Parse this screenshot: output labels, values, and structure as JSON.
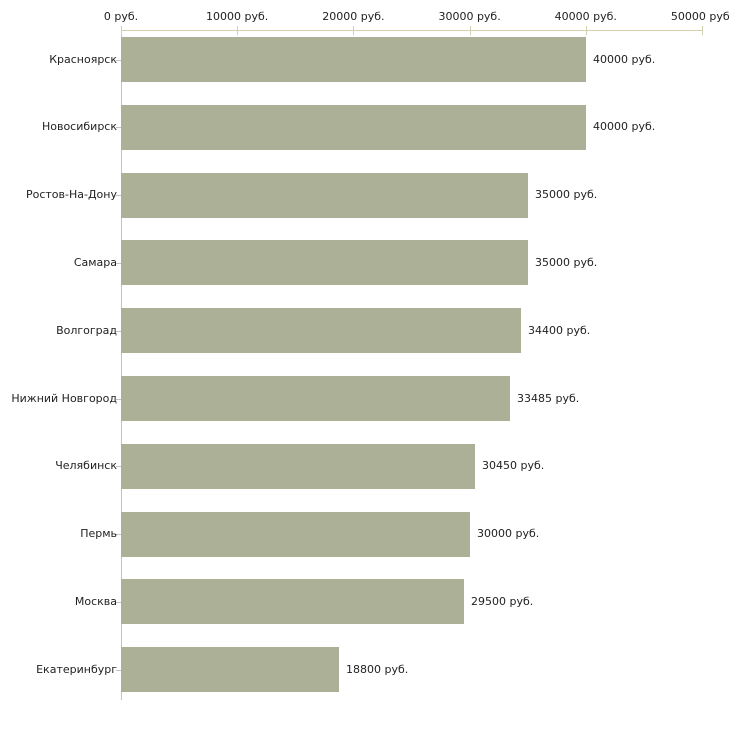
{
  "chart_data": {
    "type": "bar",
    "orientation": "horizontal",
    "title": "",
    "xlabel": "",
    "ylabel": "",
    "categories": [
      "Красноярск",
      "Новосибирск",
      "Ростов-На-Дону",
      "Самара",
      "Волгоград",
      "Нижний Новгород",
      "Челябинск",
      "Пермь",
      "Москва",
      "Екатеринбург"
    ],
    "values": [
      40000,
      40000,
      35000,
      35000,
      34400,
      33485,
      30450,
      30000,
      29500,
      18800
    ],
    "value_labels": [
      "40000 руб.",
      "40000 руб.",
      "35000 руб.",
      "35000 руб.",
      "34400 руб.",
      "33485 руб.",
      "30450 руб.",
      "30000 руб.",
      "29500 руб.",
      "18800 руб."
    ],
    "xlim": [
      0,
      50000
    ],
    "x_ticks": [
      0,
      10000,
      20000,
      30000,
      40000,
      50000
    ],
    "x_tick_labels": [
      "0 руб.",
      "10000 руб.",
      "20000 руб.",
      "30000 руб.",
      "40000 руб.",
      "50000 руб."
    ],
    "axis_position": "top",
    "grid": false,
    "legend": false,
    "colors": {
      "bar": "#abb096",
      "axis": "#d2d0ae",
      "baseline": "#c3c3c3",
      "text": "#222222",
      "background": "#ffffff"
    }
  }
}
